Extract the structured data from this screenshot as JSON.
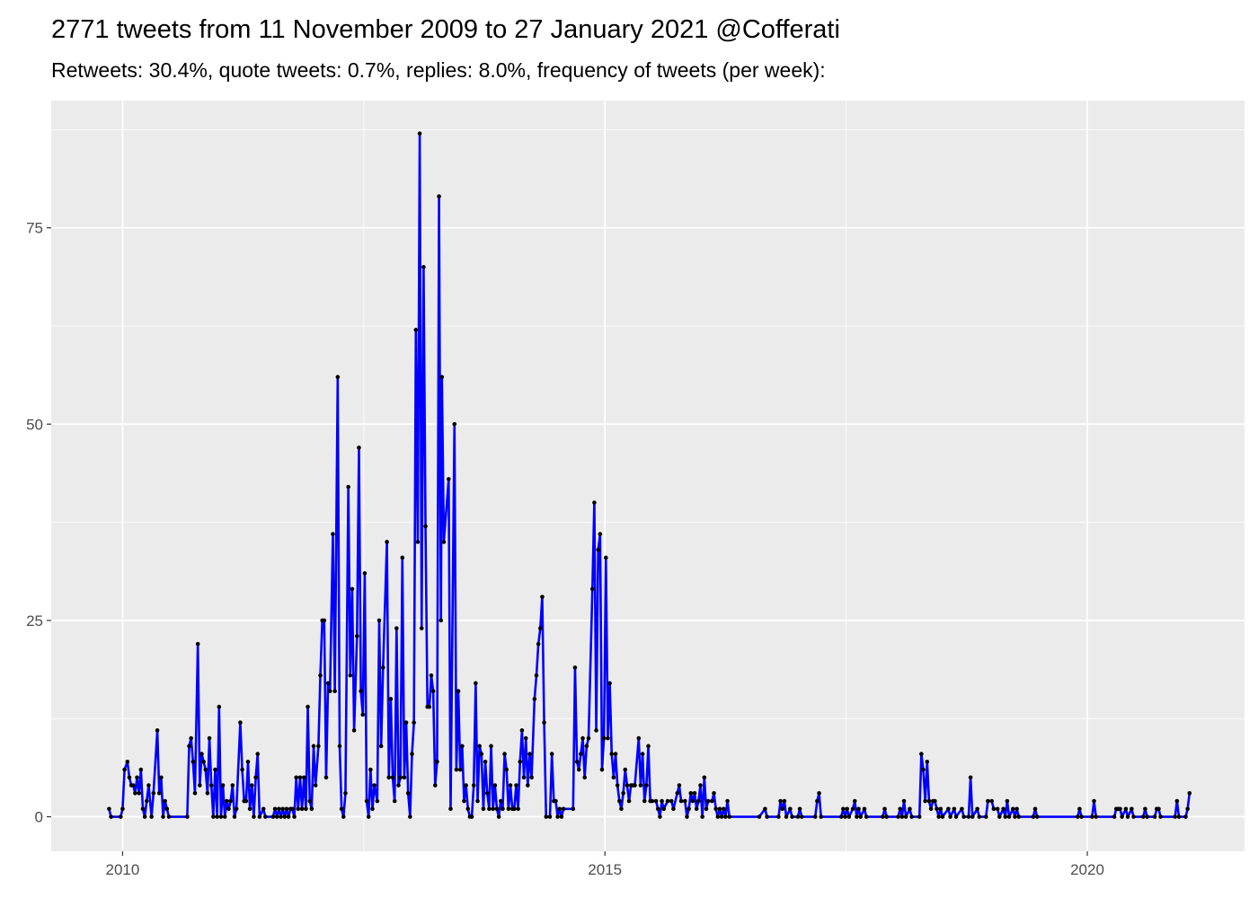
{
  "chart_data": {
    "type": "line",
    "title": "2771 tweets from 11 November 2009 to 27 January 2021 @Cofferati",
    "subtitle": "Retweets: 30.4%, quote tweets: 0.7%, replies: 8.0%, frequency of tweets (per week):",
    "color": "#0000ff",
    "marker_color": "#000000",
    "grid": true,
    "xlim": [
      2009.26,
      2021.63
    ],
    "xticks": [
      2010,
      2015,
      2020
    ],
    "ylim": [
      -4.4,
      91.2
    ],
    "yticks": [
      0,
      25,
      50,
      75
    ],
    "x": [
      2009.86,
      2009.88,
      2009.98,
      2010.0,
      2010.02,
      2010.05,
      2010.07,
      2010.09,
      2010.11,
      2010.13,
      2010.15,
      2010.17,
      2010.19,
      2010.21,
      2010.23,
      2010.25,
      2010.27,
      2010.3,
      2010.32,
      2010.36,
      2010.38,
      2010.4,
      2010.42,
      2010.44,
      2010.46,
      2010.48,
      2010.67,
      2010.69,
      2010.71,
      2010.73,
      2010.75,
      2010.78,
      2010.8,
      2010.82,
      2010.84,
      2010.86,
      2010.88,
      2010.9,
      2010.92,
      2010.94,
      2010.96,
      2010.98,
      2011.0,
      2011.02,
      2011.04,
      2011.06,
      2011.08,
      2011.1,
      2011.12,
      2011.14,
      2011.16,
      2011.18,
      2011.22,
      2011.24,
      2011.26,
      2011.28,
      2011.3,
      2011.32,
      2011.34,
      2011.36,
      2011.38,
      2011.4,
      2011.42,
      2011.46,
      2011.48,
      2011.56,
      2011.58,
      2011.6,
      2011.62,
      2011.64,
      2011.66,
      2011.68,
      2011.7,
      2011.72,
      2011.74,
      2011.76,
      2011.78,
      2011.8,
      2011.82,
      2011.84,
      2011.86,
      2011.88,
      2011.9,
      2011.92,
      2011.94,
      2011.96,
      2011.98,
      2012.0,
      2012.03,
      2012.05,
      2012.07,
      2012.09,
      2012.11,
      2012.13,
      2012.15,
      2012.18,
      2012.2,
      2012.23,
      2012.25,
      2012.27,
      2012.29,
      2012.31,
      2012.34,
      2012.36,
      2012.38,
      2012.4,
      2012.43,
      2012.45,
      2012.47,
      2012.49,
      2012.51,
      2012.53,
      2012.55,
      2012.57,
      2012.59,
      2012.61,
      2012.64,
      2012.66,
      2012.68,
      2012.7,
      2012.74,
      2012.76,
      2012.78,
      2012.8,
      2012.82,
      2012.84,
      2012.86,
      2012.88,
      2012.9,
      2012.92,
      2012.94,
      2012.96,
      2012.98,
      2013.0,
      2013.02,
      2013.04,
      2013.06,
      2013.08,
      2013.1,
      2013.12,
      2013.14,
      2013.16,
      2013.18,
      2013.2,
      2013.22,
      2013.24,
      2013.26,
      2013.28,
      2013.3,
      2013.31,
      2013.33,
      2013.38,
      2013.4,
      2013.44,
      2013.46,
      2013.48,
      2013.5,
      2013.52,
      2013.54,
      2013.56,
      2013.58,
      2013.6,
      2013.62,
      2013.64,
      2013.66,
      2013.68,
      2013.7,
      2013.72,
      2013.74,
      2013.76,
      2013.78,
      2013.8,
      2013.82,
      2013.84,
      2013.86,
      2013.88,
      2013.9,
      2013.92,
      2013.94,
      2013.96,
      2013.98,
      2014.0,
      2014.02,
      2014.04,
      2014.06,
      2014.08,
      2014.1,
      2014.12,
      2014.14,
      2014.16,
      2014.18,
      2014.2,
      2014.22,
      2014.24,
      2014.27,
      2014.29,
      2014.31,
      2014.33,
      2014.35,
      2014.37,
      2014.39,
      2014.43,
      2014.45,
      2014.47,
      2014.49,
      2014.51,
      2014.53,
      2014.55,
      2014.57,
      2014.67,
      2014.69,
      2014.71,
      2014.73,
      2014.75,
      2014.77,
      2014.79,
      2014.81,
      2014.83,
      2014.87,
      2014.89,
      2014.91,
      2014.93,
      2014.95,
      2014.97,
      2014.99,
      2015.01,
      2015.03,
      2015.05,
      2015.07,
      2015.09,
      2015.11,
      2015.13,
      2015.15,
      2015.17,
      2015.19,
      2015.21,
      2015.23,
      2015.25,
      2015.27,
      2015.29,
      2015.31,
      2015.35,
      2015.37,
      2015.39,
      2015.41,
      2015.43,
      2015.45,
      2015.47,
      2015.49,
      2015.53,
      2015.55,
      2015.57,
      2015.59,
      2015.61,
      2015.65,
      2015.69,
      2015.71,
      2015.75,
      2015.77,
      2015.79,
      2015.83,
      2015.85,
      2015.87,
      2015.89,
      2015.91,
      2015.93,
      2015.95,
      2015.97,
      2015.99,
      2016.01,
      2016.03,
      2016.05,
      2016.07,
      2016.11,
      2016.13,
      2016.15,
      2016.17,
      2016.19,
      2016.21,
      2016.23,
      2016.25,
      2016.27,
      2016.29,
      2016.6,
      2016.66,
      2016.68,
      2016.8,
      2016.82,
      2016.84,
      2016.86,
      2016.88,
      2016.92,
      2016.94,
      2017.0,
      2017.02,
      2017.04,
      2017.18,
      2017.2,
      2017.22,
      2017.24,
      2017.45,
      2017.47,
      2017.49,
      2017.51,
      2017.53,
      2017.57,
      2017.59,
      2017.61,
      2017.63,
      2017.65,
      2017.69,
      2017.71,
      2017.88,
      2017.9,
      2017.92,
      2018.04,
      2018.06,
      2018.08,
      2018.1,
      2018.12,
      2018.16,
      2018.18,
      2018.26,
      2018.28,
      2018.3,
      2018.32,
      2018.34,
      2018.36,
      2018.38,
      2018.4,
      2018.42,
      2018.44,
      2018.46,
      2018.48,
      2018.5,
      2018.56,
      2018.58,
      2018.62,
      2018.64,
      2018.7,
      2018.72,
      2018.77,
      2018.79,
      2018.81,
      2018.86,
      2018.88,
      2018.95,
      2018.97,
      2019.01,
      2019.03,
      2019.07,
      2019.09,
      2019.13,
      2019.15,
      2019.17,
      2019.19,
      2019.23,
      2019.25,
      2019.27,
      2019.29,
      2019.44,
      2019.46,
      2019.48,
      2019.9,
      2019.92,
      2019.94,
      2020.05,
      2020.07,
      2020.09,
      2020.28,
      2020.3,
      2020.32,
      2020.34,
      2020.36,
      2020.4,
      2020.42,
      2020.46,
      2020.48,
      2020.58,
      2020.6,
      2020.62,
      2020.7,
      2020.72,
      2020.74,
      2020.76,
      2020.91,
      2020.93,
      2020.95,
      2021.02,
      2021.04,
      2021.06
    ],
    "values": [
      1,
      0,
      0,
      1,
      6,
      7,
      5,
      4,
      4,
      3,
      5,
      3,
      6,
      1,
      0,
      2,
      4,
      0,
      3,
      11,
      3,
      5,
      0,
      2,
      1,
      0,
      0,
      9,
      10,
      7,
      3,
      22,
      4,
      8,
      7,
      6,
      3,
      10,
      4,
      0,
      6,
      0,
      14,
      0,
      4,
      0,
      2,
      1,
      2,
      4,
      0,
      1,
      12,
      6,
      2,
      2,
      7,
      1,
      4,
      0,
      5,
      8,
      0,
      1,
      0,
      0,
      1,
      0,
      1,
      0,
      1,
      0,
      1,
      0,
      1,
      1,
      0,
      5,
      1,
      5,
      1,
      5,
      1,
      14,
      2,
      1,
      9,
      4,
      9,
      18,
      25,
      25,
      5,
      17,
      16,
      36,
      16,
      56,
      9,
      1,
      0,
      3,
      42,
      18,
      29,
      11,
      23,
      47,
      16,
      13,
      31,
      2,
      0,
      6,
      1,
      4,
      2,
      25,
      9,
      19,
      35,
      5,
      15,
      5,
      2,
      24,
      4,
      5,
      33,
      5,
      12,
      3,
      0,
      8,
      12,
      62,
      35,
      87,
      24,
      70,
      37,
      14,
      14,
      18,
      16,
      4,
      7,
      79,
      25,
      56,
      35,
      43,
      1,
      50,
      6,
      16,
      6,
      9,
      2,
      4,
      1,
      0,
      0,
      4,
      17,
      2,
      9,
      8,
      1,
      7,
      3,
      1,
      9,
      1,
      4,
      1,
      0,
      2,
      1,
      8,
      6,
      1,
      4,
      1,
      1,
      4,
      1,
      7,
      11,
      5,
      10,
      4,
      8,
      5,
      15,
      18,
      22,
      24,
      28,
      12,
      0,
      0,
      8,
      2,
      2,
      0,
      1,
      0,
      1,
      1,
      19,
      7,
      6,
      8,
      10,
      5,
      9,
      10,
      29,
      40,
      11,
      34,
      36,
      6,
      10,
      33,
      10,
      17,
      8,
      5,
      8,
      4,
      2,
      1,
      3,
      6,
      4,
      2,
      4,
      4,
      4,
      10,
      4,
      8,
      2,
      4,
      9,
      2,
      2,
      2,
      1,
      0,
      2,
      1,
      2,
      2,
      1,
      3,
      4,
      2,
      2,
      0,
      1,
      3,
      2,
      3,
      1,
      2,
      4,
      0,
      5,
      1,
      2,
      2,
      3,
      1,
      0,
      1,
      0,
      1,
      0,
      2,
      0,
      0,
      1,
      0,
      0,
      2,
      1,
      2,
      0,
      1,
      0,
      0,
      1,
      0,
      0,
      2,
      3,
      0,
      0,
      1,
      0,
      1,
      0,
      1,
      2,
      0,
      1,
      0,
      1,
      0,
      0,
      1,
      0,
      0,
      1,
      0,
      2,
      0,
      1,
      0,
      0,
      8,
      6,
      2,
      7,
      2,
      1,
      2,
      2,
      1,
      0,
      1,
      0,
      1,
      0,
      1,
      0,
      1,
      0,
      0,
      5,
      0,
      1,
      0,
      0,
      2,
      2,
      1,
      1,
      0,
      1,
      0,
      2,
      0,
      1,
      0,
      1,
      0,
      0,
      1,
      0,
      0,
      1,
      0,
      0,
      2,
      0,
      0,
      1,
      1,
      1,
      0,
      1,
      0,
      1,
      0,
      0,
      1,
      0,
      0,
      1,
      1,
      0,
      0,
      2,
      0,
      0,
      1,
      3
    ]
  }
}
